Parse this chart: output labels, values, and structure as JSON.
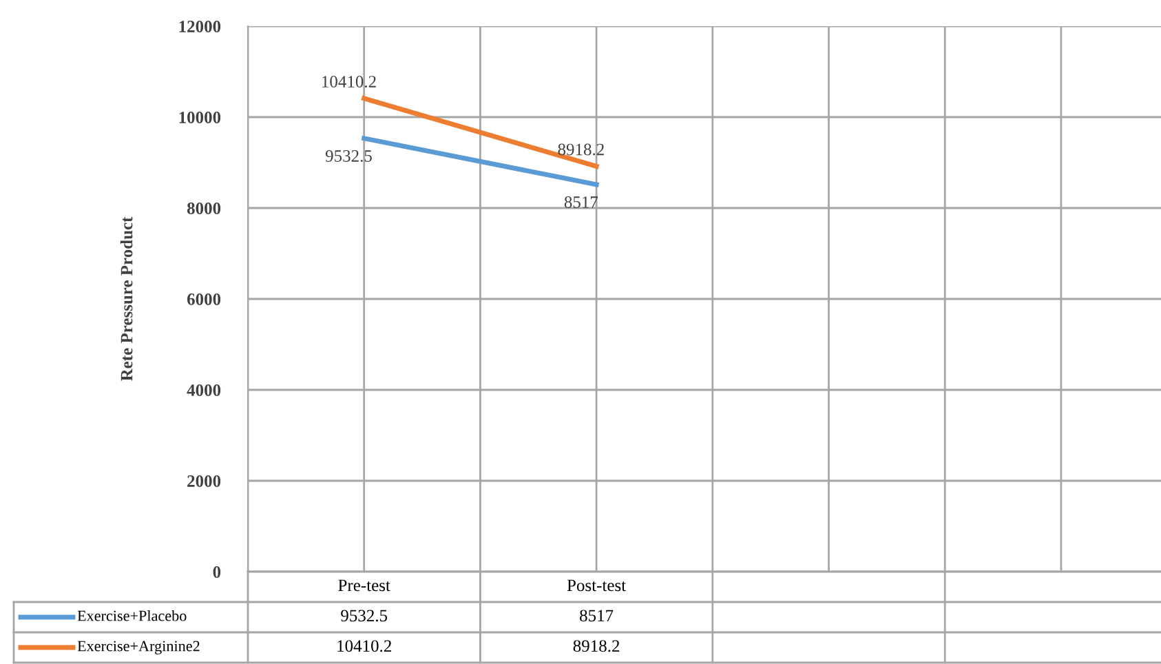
{
  "chart_data": {
    "type": "line",
    "ylabel": "Rete Pressure Product",
    "categories": [
      "Pre-test",
      "Post-test",
      null,
      null
    ],
    "series": [
      {
        "name": "Exercise+Placebo",
        "color": "#5b9bd5",
        "values": [
          9532.5,
          8517,
          null,
          null
        ],
        "value_labels": [
          "9532.5",
          "8517",
          null,
          null
        ]
      },
      {
        "name": "Exercise+Arginine2",
        "color": "#ed7d31",
        "values": [
          10410.2,
          8918.2,
          null,
          null
        ],
        "value_labels": [
          "10410.2",
          "8918.2",
          null,
          null
        ]
      }
    ],
    "ylim": [
      0,
      12000
    ],
    "yticks": [
      0,
      2000,
      4000,
      6000,
      8000,
      10000,
      12000
    ],
    "grid": true,
    "legend": "bottom",
    "annotations": [
      "9532.5",
      "8517",
      "10410.2",
      "8918.2"
    ],
    "marker": "none",
    "line_style": "solid"
  }
}
